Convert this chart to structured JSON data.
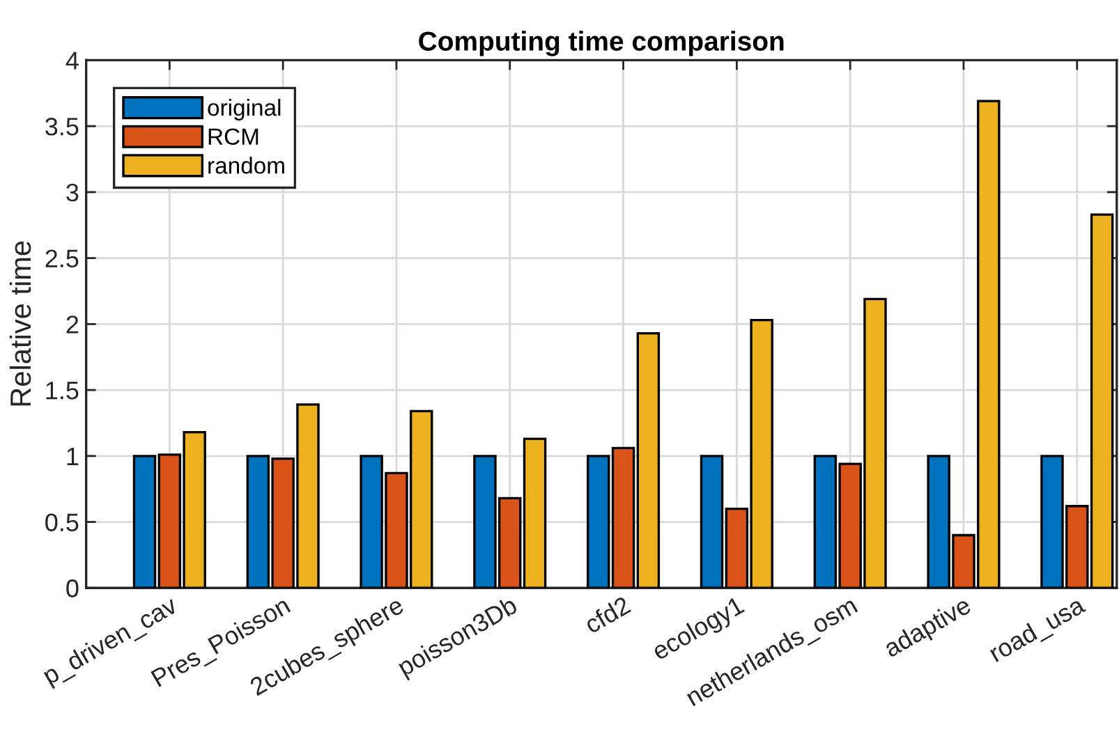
{
  "chart_data": {
    "type": "bar",
    "title": "Computing time comparison",
    "ylabel": "Relative time",
    "categories": [
      "p_driven_cav",
      "Pres_Poisson",
      "2cubes_sphere",
      "poisson3Db",
      "cfd2",
      "ecology1",
      "netherlands_osm",
      "adaptive",
      "road_usa"
    ],
    "series": [
      {
        "name": "original",
        "color": "#0072bd",
        "values": [
          1,
          1,
          1,
          1,
          1,
          1,
          1,
          1,
          1
        ]
      },
      {
        "name": "RCM",
        "color": "#d95319",
        "values": [
          1.01,
          0.98,
          0.87,
          0.68,
          1.06,
          0.6,
          0.94,
          0.4,
          0.62
        ]
      },
      {
        "name": "random",
        "color": "#edb120",
        "values": [
          1.18,
          1.39,
          1.34,
          1.13,
          1.93,
          2.03,
          2.19,
          3.69,
          2.83
        ]
      }
    ],
    "ylim": [
      0,
      4
    ],
    "yticks": [
      0,
      0.5,
      1,
      1.5,
      2,
      2.5,
      3,
      3.5,
      4
    ],
    "grid": true,
    "legend": "top left"
  }
}
